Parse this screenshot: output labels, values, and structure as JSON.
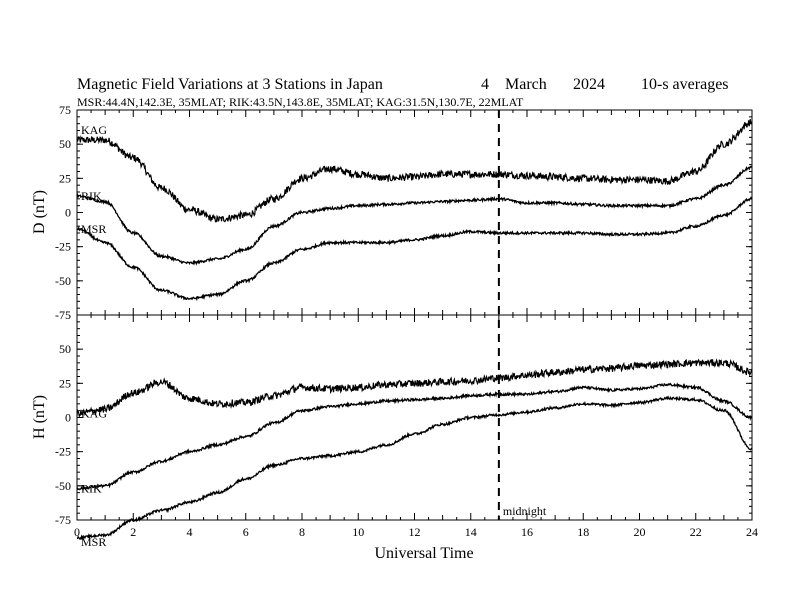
{
  "header": {
    "title": "Magnetic Field Variations at 3 Stations in Japan",
    "day": "4",
    "month": "March",
    "year": "2024",
    "averaging": "10-s averages",
    "stations_line": "MSR:44.4N,142.3E, 35MLAT;  RIK:43.5N,143.8E, 35MLAT;  KAG:31.5N,130.7E, 22MLAT"
  },
  "chart_data": [
    {
      "type": "line",
      "panel": "D",
      "ylabel": "D (nT)",
      "ylim": [
        -75,
        75
      ],
      "yticks": [
        "75",
        "50",
        "25",
        "0",
        "-25",
        "-50",
        "-75"
      ],
      "xlim": [
        0,
        24
      ],
      "series": [
        {
          "name": "KAG",
          "x": [
            0,
            1,
            2,
            3,
            4,
            5,
            6,
            7,
            8,
            9,
            10,
            11,
            12,
            13,
            14,
            15,
            16,
            17,
            18,
            19,
            20,
            21,
            22,
            23,
            24
          ],
          "values": [
            53,
            53,
            40,
            18,
            2,
            -5,
            -2,
            10,
            25,
            32,
            28,
            25,
            26,
            28,
            28,
            28,
            27,
            26,
            25,
            24,
            24,
            23,
            30,
            50,
            66
          ]
        },
        {
          "name": "RIK",
          "x": [
            0,
            1,
            2,
            3,
            4,
            5,
            6,
            7,
            8,
            9,
            10,
            11,
            12,
            13,
            14,
            15,
            16,
            17,
            18,
            19,
            20,
            21,
            22,
            23,
            24
          ],
          "values": [
            12,
            8,
            -15,
            -32,
            -37,
            -34,
            -27,
            -10,
            0,
            3,
            5,
            6,
            7,
            8,
            9,
            10,
            7,
            7,
            6,
            5,
            5,
            5,
            10,
            20,
            33
          ]
        },
        {
          "name": "MSR",
          "x": [
            0,
            1,
            2,
            3,
            4,
            5,
            6,
            7,
            8,
            9,
            10,
            11,
            12,
            13,
            14,
            15,
            16,
            17,
            18,
            19,
            20,
            21,
            22,
            23,
            24
          ],
          "values": [
            -12,
            -22,
            -40,
            -57,
            -63,
            -60,
            -50,
            -37,
            -27,
            -22,
            -22,
            -22,
            -20,
            -17,
            -14,
            -15,
            -15,
            -15,
            -15,
            -16,
            -16,
            -15,
            -10,
            -2,
            10
          ]
        }
      ],
      "series_labels": [
        "KAG",
        "RIK",
        "MSR"
      ]
    },
    {
      "type": "line",
      "panel": "H",
      "ylabel": "H (nT)",
      "ylim": [
        -75,
        75
      ],
      "yticks": [
        "50",
        "25",
        "0",
        "-25",
        "-50",
        "-75"
      ],
      "xlim": [
        0,
        24
      ],
      "xlabel": "Universal Time",
      "xticks": [
        "0",
        "2",
        "4",
        "6",
        "8",
        "10",
        "12",
        "14",
        "16",
        "18",
        "20",
        "22",
        "24"
      ],
      "series": [
        {
          "name": "KAG",
          "x": [
            0,
            1,
            2,
            3,
            4,
            5,
            6,
            7,
            8,
            9,
            10,
            11,
            12,
            13,
            14,
            15,
            16,
            17,
            18,
            19,
            20,
            21,
            22,
            23,
            24
          ],
          "values": [
            3,
            6,
            18,
            26,
            14,
            10,
            11,
            16,
            22,
            21,
            22,
            24,
            25,
            26,
            27,
            29,
            31,
            33,
            35,
            36,
            38,
            39,
            40,
            40,
            33
          ]
        },
        {
          "name": "RIK",
          "x": [
            0,
            1,
            2,
            3,
            4,
            5,
            6,
            7,
            8,
            9,
            10,
            11,
            12,
            13,
            14,
            15,
            16,
            17,
            18,
            19,
            20,
            21,
            22,
            23,
            24
          ],
          "values": [
            -52,
            -50,
            -40,
            -32,
            -25,
            -20,
            -14,
            -4,
            5,
            8,
            10,
            12,
            13,
            14,
            16,
            17,
            17,
            19,
            22,
            20,
            21,
            24,
            22,
            12,
            0
          ]
        },
        {
          "name": "MSR",
          "x": [
            0,
            1,
            2,
            3,
            4,
            5,
            6,
            7,
            8,
            9,
            10,
            11,
            12,
            13,
            14,
            15,
            16,
            17,
            18,
            19,
            20,
            21,
            22,
            23,
            24
          ],
          "values": [
            -88,
            -86,
            -75,
            -68,
            -62,
            -55,
            -45,
            -35,
            -30,
            -28,
            -25,
            -20,
            -12,
            -5,
            0,
            2,
            4,
            7,
            10,
            9,
            11,
            14,
            13,
            5,
            -23
          ]
        }
      ],
      "series_labels": [
        "KAG",
        "RIK",
        "MSR"
      ]
    }
  ],
  "annotation": {
    "midnight_label": "midnight",
    "midnight_ut": 15
  }
}
